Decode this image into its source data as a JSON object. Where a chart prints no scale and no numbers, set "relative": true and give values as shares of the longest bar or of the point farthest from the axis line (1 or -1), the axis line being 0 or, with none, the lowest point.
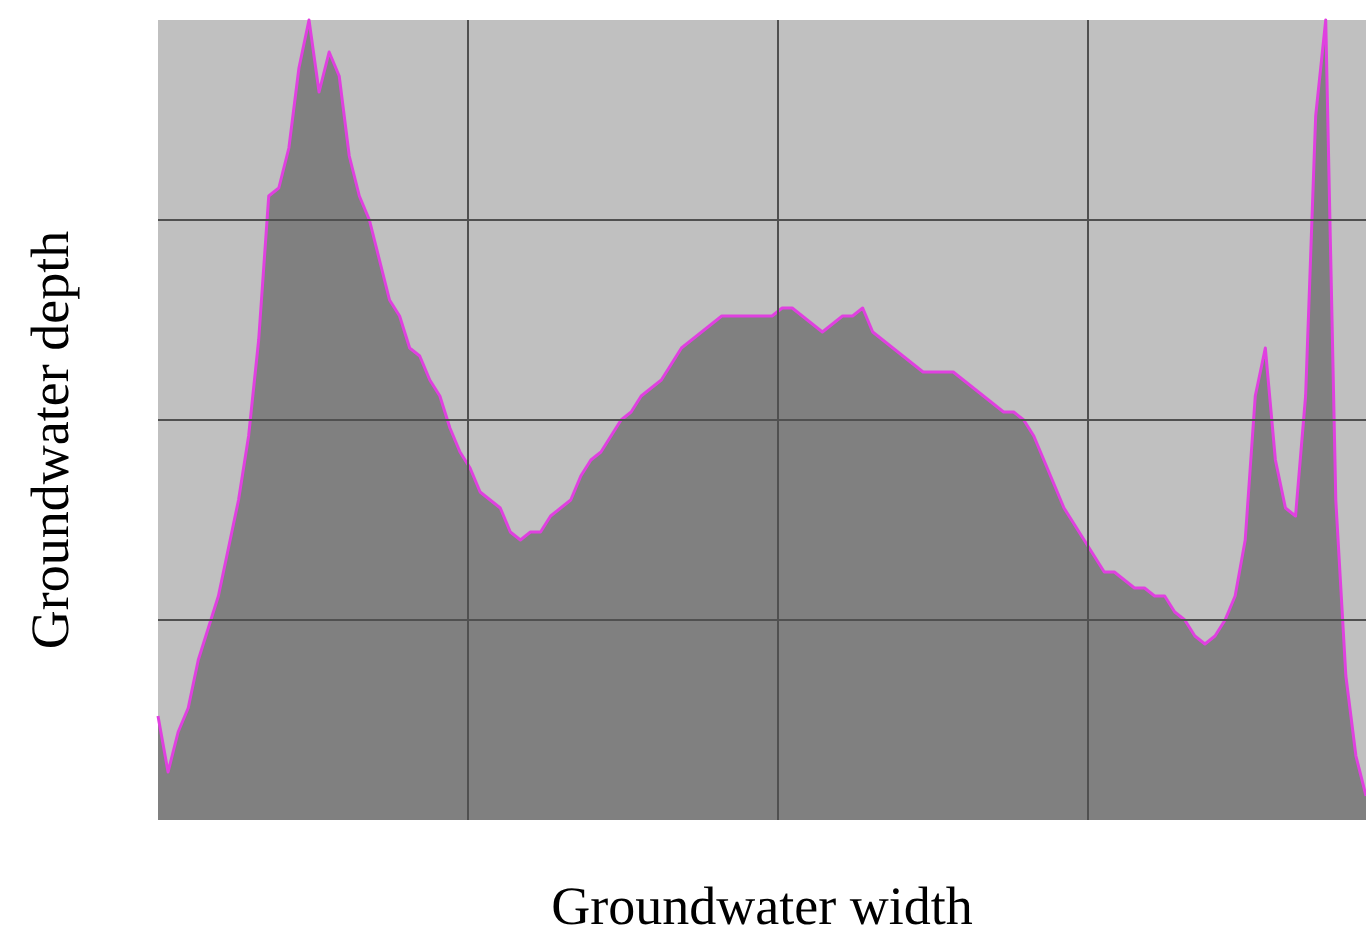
{
  "chart_data": {
    "type": "area",
    "xlabel": "Groundwater width",
    "ylabel": "Groundwater depth",
    "relative": true,
    "grid": true,
    "categories": [
      null,
      null,
      null,
      null,
      null,
      null,
      null,
      null,
      null,
      null,
      null,
      null,
      null,
      null,
      null,
      null,
      null,
      null,
      null,
      null,
      null,
      null,
      null,
      null,
      null,
      null,
      null,
      null,
      null,
      null,
      null,
      null,
      null,
      null,
      null,
      null,
      null,
      null,
      null,
      null,
      null,
      null,
      null,
      null,
      null,
      null,
      null,
      null,
      null,
      null,
      null,
      null,
      null,
      null,
      null,
      null,
      null,
      null,
      null,
      null,
      null,
      null,
      null,
      null,
      null,
      null,
      null,
      null,
      null,
      null,
      null,
      null,
      null,
      null,
      null,
      null,
      null,
      null,
      null,
      null,
      null,
      null,
      null,
      null,
      null,
      null,
      null,
      null,
      null,
      null,
      null,
      null,
      null,
      null,
      null,
      null,
      null,
      null,
      null,
      null,
      null,
      null,
      null,
      null,
      null,
      null,
      null,
      null,
      null,
      null,
      null,
      null,
      null,
      null,
      null,
      null,
      null,
      null,
      null,
      null,
      null
    ],
    "series": [
      {
        "color": "#808080",
        "values": [
          0.13,
          0.06,
          0.11,
          0.14,
          0.2,
          0.24,
          0.28,
          0.34,
          0.4,
          0.48,
          0.6,
          0.78,
          0.79,
          0.84,
          0.94,
          1,
          0.91,
          0.96,
          0.93,
          0.83,
          0.78,
          0.75,
          0.7,
          0.65,
          0.63,
          0.59,
          0.58,
          0.55,
          0.53,
          0.49,
          0.46,
          0.44,
          0.41,
          0.4,
          0.39,
          0.36,
          0.35,
          0.36,
          0.36,
          0.38,
          0.39,
          0.4,
          0.43,
          0.45,
          0.46,
          0.48,
          0.5,
          0.51,
          0.53,
          0.54,
          0.55,
          0.57,
          0.59,
          0.6,
          0.61,
          0.62,
          0.63,
          0.63,
          0.63,
          0.63,
          0.63,
          0.63,
          0.64,
          0.64,
          0.63,
          0.62,
          0.61,
          0.62,
          0.63,
          0.63,
          0.64,
          0.61,
          0.6,
          0.59,
          0.58,
          0.57,
          0.56,
          0.56,
          0.56,
          0.56,
          0.55,
          0.54,
          0.53,
          0.52,
          0.51,
          0.51,
          0.5,
          0.48,
          0.45,
          0.42,
          0.39,
          0.37,
          0.35,
          0.33,
          0.31,
          0.31,
          0.3,
          0.29,
          0.29,
          0.28,
          0.28,
          0.26,
          0.25,
          0.23,
          0.22,
          0.23,
          0.25,
          0.28,
          0.35,
          0.53,
          0.59,
          0.45,
          0.39,
          0.38,
          0.53,
          0.88,
          1,
          0.4,
          0.18,
          0.08,
          0.03
        ]
      }
    ]
  }
}
